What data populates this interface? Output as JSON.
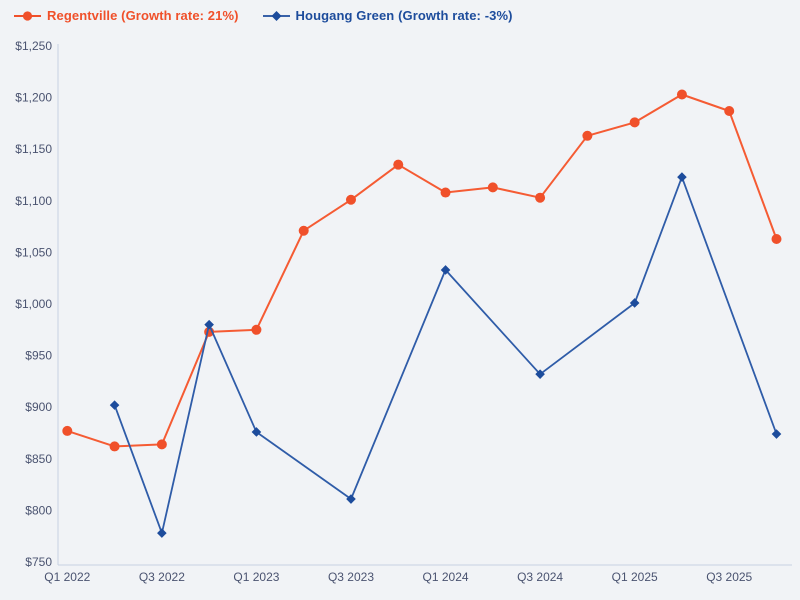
{
  "legend": {
    "items": [
      {
        "label": "Regentville (Growth rate: 21%)",
        "color": "#f0502a",
        "marker": "circle"
      },
      {
        "label": "Hougang Green (Growth rate: -3%)",
        "color": "#1d4c9c",
        "marker": "diamond"
      }
    ]
  },
  "axis": {
    "y_tick_labels": [
      "$1,250",
      "$1,200",
      "$1,150",
      "$1,100",
      "$1,050",
      "$1,000",
      "$950",
      "$900",
      "$850",
      "$800",
      "$750"
    ],
    "x_tick_labels": [
      "Q1 2022",
      "Q3 2022",
      "Q1 2023",
      "Q3 2023",
      "Q1 2024",
      "Q3 2024",
      "Q1 2025",
      "Q3 2025"
    ]
  },
  "chart_data": {
    "type": "line",
    "title": "",
    "categories": [
      "Q1 2022",
      "Q2 2022",
      "Q3 2022",
      "Q4 2022",
      "Q1 2023",
      "Q2 2023",
      "Q3 2023",
      "Q4 2023",
      "Q1 2024",
      "Q2 2024",
      "Q3 2024",
      "Q4 2024",
      "Q1 2025",
      "Q2 2025",
      "Q3 2025",
      "Q4 2025"
    ],
    "series": [
      {
        "name": "Regentville",
        "growth_rate": "21%",
        "marker": "circle",
        "color": "#f0502a",
        "line_color": "#f55b33",
        "marker_size": 5,
        "line_width": 2,
        "values": [
          877,
          862,
          864,
          973,
          975,
          1071,
          1101,
          1135,
          1108,
          1113,
          1103,
          1163,
          1176,
          1203,
          1187,
          1063
        ]
      },
      {
        "name": "Hougang Green",
        "growth_rate": "-3%",
        "marker": "diamond",
        "color": "#1d4c9c",
        "line_color": "#2f5ca8",
        "marker_size": 4.8,
        "line_width": 1.8,
        "values": [
          null,
          902,
          778,
          980,
          876,
          null,
          811,
          null,
          1033,
          null,
          932,
          null,
          1001,
          1123,
          null,
          874
        ]
      }
    ],
    "ylim": [
      750,
      1250
    ],
    "ytick_step": 50,
    "currency_prefix": "$",
    "grid": false,
    "legend_position": "top-left",
    "background": "#f1f3f6",
    "axis_color": "#c8d1e2",
    "tick_label_color": "#4a5370"
  }
}
